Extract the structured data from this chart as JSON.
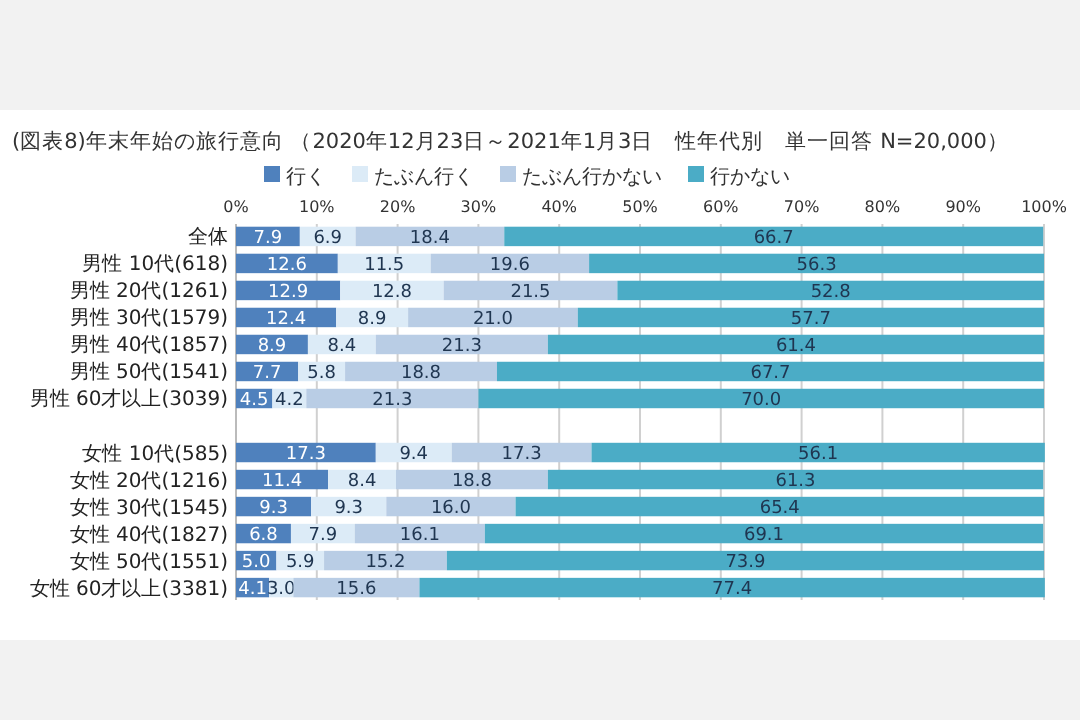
{
  "chart_data": {
    "type": "bar",
    "orientation": "horizontal",
    "stacked": true,
    "title": "(図表8)年末年始の旅行意向 （2020年12月23日～2021年1月3日　性年代別　単一回答 N=20,000）",
    "categories": [
      "全体",
      "男性 10代(618)",
      "男性 20代(1261)",
      "男性 30代(1579)",
      "男性 40代(1857)",
      "男性 50代(1541)",
      "男性 60才以上(3039)",
      null,
      "女性 10代(585)",
      "女性 20代(1216)",
      "女性 30代(1545)",
      "女性 40代(1827)",
      "女性 50代(1551)",
      "女性 60才以上(3381)"
    ],
    "series": [
      {
        "name": "行く",
        "color": "#4f81bd",
        "values": [
          7.9,
          12.6,
          12.9,
          12.4,
          8.9,
          7.7,
          4.5,
          null,
          17.3,
          11.4,
          9.3,
          6.8,
          5.0,
          4.1
        ],
        "value_labels": [
          "7.9",
          "12.6",
          "12.9",
          "12.4",
          "8.9",
          "7.7",
          "4.5",
          null,
          "17.3",
          "11.4",
          "9.3",
          "6.8",
          "5.0",
          "4.1"
        ]
      },
      {
        "name": "たぶん行く",
        "color": "#dcebf7",
        "values": [
          6.9,
          11.5,
          12.8,
          8.9,
          8.4,
          5.8,
          4.2,
          null,
          9.4,
          8.4,
          9.3,
          7.9,
          5.9,
          3.0
        ],
        "value_labels": [
          "6.9",
          "11.5",
          "12.8",
          "8.9",
          "8.4",
          "5.8",
          "4.2",
          null,
          "9.4",
          "8.4",
          "9.3",
          "7.9",
          "5.9",
          "3.0"
        ]
      },
      {
        "name": "たぶん行かない",
        "color": "#b9cde5",
        "values": [
          18.4,
          19.6,
          21.5,
          21.0,
          21.3,
          18.8,
          21.3,
          null,
          17.3,
          18.8,
          16.0,
          16.1,
          15.2,
          15.6
        ],
        "value_labels": [
          "18.4",
          "19.6",
          "21.5",
          "21.0",
          "21.3",
          "18.8",
          "21.3",
          null,
          "17.3",
          "18.8",
          "16.0",
          "16.1",
          "15.2",
          "15.6"
        ]
      },
      {
        "name": "行かない",
        "color": "#4bacc6",
        "values": [
          66.7,
          56.3,
          52.8,
          57.7,
          61.4,
          67.7,
          70.0,
          null,
          56.1,
          61.3,
          65.4,
          69.1,
          73.9,
          77.4
        ],
        "value_labels": [
          "66.7",
          "56.3",
          "52.8",
          "57.7",
          "61.4",
          "67.7",
          "70.0",
          null,
          "56.1",
          "61.3",
          "65.4",
          "69.1",
          "73.9",
          "77.4"
        ]
      }
    ],
    "xlim": [
      0,
      100
    ],
    "xticks": [
      {
        "value": 0,
        "label": "0%"
      },
      {
        "value": 10,
        "label": "10%"
      },
      {
        "value": 20,
        "label": "20%"
      },
      {
        "value": 30,
        "label": "30%"
      },
      {
        "value": 40,
        "label": "40%"
      },
      {
        "value": 50,
        "label": "50%"
      },
      {
        "value": 60,
        "label": "60%"
      },
      {
        "value": 70,
        "label": "70%"
      },
      {
        "value": 80,
        "label": "80%"
      },
      {
        "value": 90,
        "label": "90%"
      },
      {
        "value": 100,
        "label": "100%"
      }
    ],
    "grid": "x",
    "legend": "top"
  }
}
